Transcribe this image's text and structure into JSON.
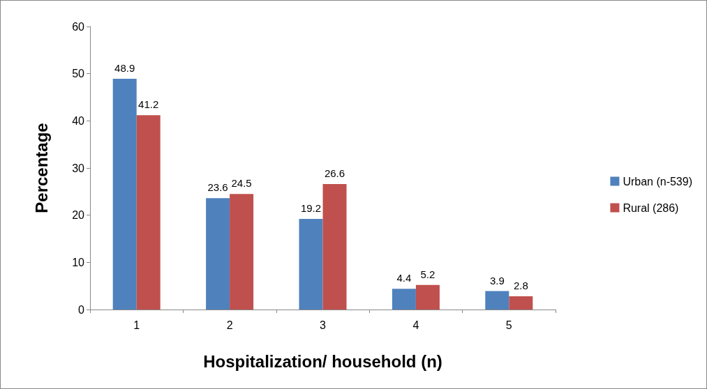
{
  "chart_data": {
    "type": "bar",
    "xlabel": "Hospitalization/ household (n)",
    "ylabel": "Percentage",
    "categories": [
      "1",
      "2",
      "3",
      "4",
      "5"
    ],
    "series": [
      {
        "name": "Urban (n-539)",
        "color": "#4f81bd",
        "values": [
          48.9,
          23.6,
          19.2,
          4.4,
          3.9
        ]
      },
      {
        "name": "Rural (286)",
        "color": "#c0504d",
        "values": [
          41.2,
          24.5,
          26.6,
          5.2,
          2.8
        ]
      }
    ],
    "ylim": [
      0,
      60
    ],
    "yticks": [
      0,
      10,
      20,
      30,
      40,
      50,
      60
    ],
    "grid": false,
    "legend": "right",
    "data_labels": true
  }
}
